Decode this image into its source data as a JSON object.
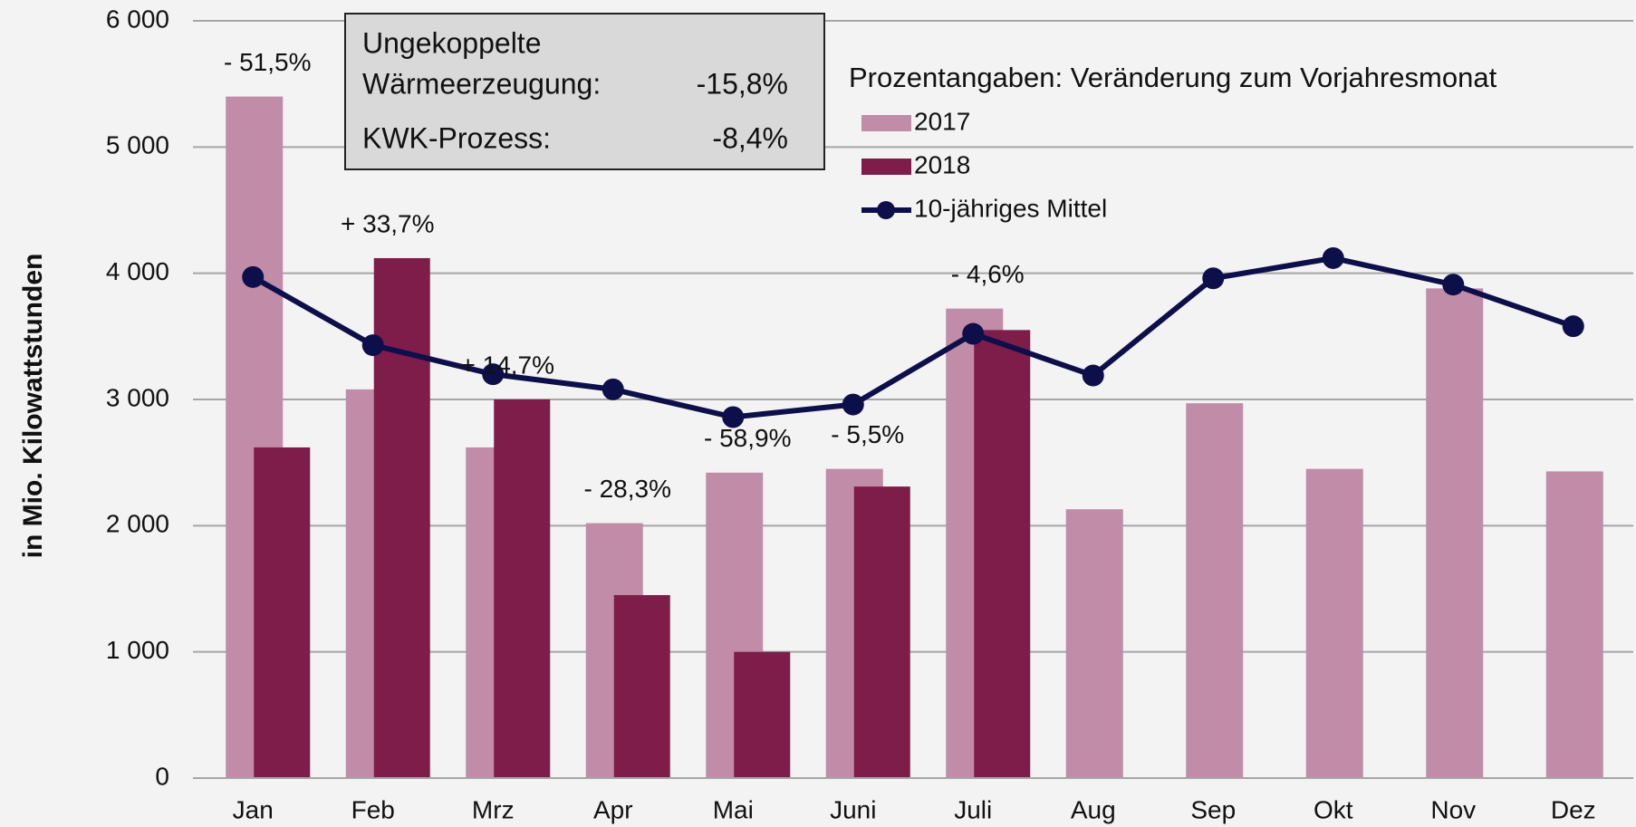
{
  "chart_data": {
    "type": "bar",
    "y_axis_label": "in Mio. Kilowattstunden",
    "categories": [
      "Jan",
      "Feb",
      "Mrz",
      "Apr",
      "Mai",
      "Juni",
      "Juli",
      "Aug",
      "Sep",
      "Okt",
      "Nov",
      "Dez"
    ],
    "series": [
      {
        "name": "2017",
        "type": "bar",
        "color": "#c08ca8",
        "values": [
          5400,
          3080,
          2620,
          2020,
          2420,
          2450,
          3720,
          2130,
          2970,
          2450,
          3880,
          2430
        ]
      },
      {
        "name": "2018",
        "type": "bar",
        "color": "#7e1c4a",
        "values": [
          2620,
          4120,
          3000,
          1450,
          1000,
          2310,
          3550,
          null,
          null,
          null,
          null,
          null
        ]
      },
      {
        "name": "10-jähriges Mittel",
        "type": "line",
        "color": "#0d0f4a",
        "values": [
          3970,
          3430,
          3200,
          3080,
          2860,
          2960,
          3520,
          3190,
          3960,
          4120,
          3910,
          3580
        ]
      }
    ],
    "change_labels": [
      "- 51,5%",
      "+ 33,7%",
      "+ 14,7%",
      "- 28,3%",
      "- 58,9%",
      "- 5,5%",
      "- 4,6%",
      null,
      null,
      null,
      null,
      null
    ],
    "legend_title": "Prozentangaben: Veränderung zum Vorjahresmonat",
    "info_box": {
      "title": "Ungekoppelte",
      "rows": [
        [
          "Wärmeerzeugung:",
          "-15,8%"
        ],
        [
          "KWK-Prozess:",
          "-8,4%"
        ]
      ]
    },
    "ylim": [
      0,
      6000
    ],
    "yticks": [
      0,
      {
        "value": 1000,
        "label": "1 000"
      },
      {
        "value": 2000,
        "label": "2 000"
      },
      {
        "value": 3000,
        "label": "3 000"
      },
      {
        "value": 4000,
        "label": "4 000"
      },
      {
        "value": 5000,
        "label": "5 000"
      },
      {
        "value": 6000,
        "label": "6 000"
      }
    ],
    "grid": true
  }
}
